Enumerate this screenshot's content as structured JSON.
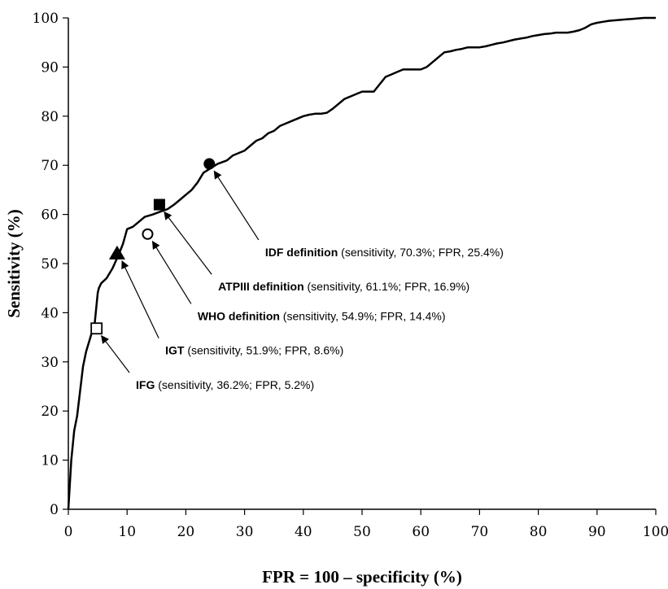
{
  "chart_data": {
    "type": "line",
    "title": "",
    "xlabel": "FPR = 100 – specificity (%)",
    "ylabel": "Sensitivity (%)",
    "xlim": [
      0,
      100
    ],
    "ylim": [
      0,
      100
    ],
    "x_ticks": [
      0,
      10,
      20,
      30,
      40,
      50,
      60,
      70,
      80,
      90,
      100
    ],
    "y_ticks": [
      0,
      10,
      20,
      30,
      40,
      50,
      60,
      70,
      80,
      90,
      100
    ],
    "grid": false,
    "line_color": "#000000",
    "series": [
      {
        "x": [
          0,
          0.5,
          1,
          1.5,
          2,
          2.5,
          3,
          3.5,
          4,
          4.5,
          5,
          5.2,
          5.6,
          6.5,
          7.5,
          8.6,
          9.3,
          10,
          11,
          12,
          13,
          14.4,
          15.5,
          16.9,
          18,
          19,
          20,
          21,
          22,
          23,
          25.4,
          27,
          28,
          29,
          30,
          31,
          32,
          33,
          34,
          35,
          36,
          37,
          38,
          39,
          40,
          41,
          42,
          43,
          44,
          45,
          46,
          47,
          48,
          49,
          50,
          51,
          52,
          53,
          54,
          55,
          56,
          57,
          58,
          59,
          60,
          61,
          62,
          63,
          64,
          65,
          66,
          67,
          68,
          69,
          70,
          71,
          72,
          73,
          74,
          75,
          76,
          77,
          78,
          79,
          80,
          81,
          82,
          83,
          84,
          85,
          86,
          87,
          88,
          89,
          90,
          91,
          92,
          93,
          94,
          95,
          96,
          97,
          98,
          99,
          100
        ],
        "y": [
          0,
          10,
          16,
          19,
          24,
          29,
          32,
          34,
          36,
          38,
          44,
          45,
          46,
          47,
          49,
          51.9,
          54,
          57,
          57.5,
          58.5,
          59.5,
          60,
          60.5,
          61.1,
          62,
          63,
          64,
          65,
          66.5,
          68.5,
          70.3,
          71,
          72,
          72.5,
          73,
          74,
          75,
          75.5,
          76.5,
          77,
          78,
          78.5,
          79,
          79.5,
          80,
          80.3,
          80.5,
          80.5,
          80.7,
          81.5,
          82.5,
          83.5,
          84,
          84.5,
          85,
          85,
          85,
          86.5,
          88,
          88.5,
          89,
          89.5,
          89.5,
          89.5,
          89.5,
          90,
          91,
          92,
          93,
          93.2,
          93.5,
          93.7,
          94,
          94,
          94,
          94.2,
          94.5,
          94.8,
          95,
          95.3,
          95.6,
          95.8,
          96,
          96.3,
          96.5,
          96.7,
          96.8,
          97,
          97,
          97,
          97.2,
          97.5,
          98,
          98.7,
          99,
          99.2,
          99.4,
          99.5,
          99.6,
          99.7,
          99.8,
          99.9,
          100,
          100,
          100
        ]
      }
    ],
    "annotations": [
      {
        "label_bold": "IDF definition",
        "label_rest": " (sensitivity, 70.3%; FPR, 25.4%)",
        "marker": "filled-circle",
        "point": [
          24,
          70.3
        ],
        "text_anchor": [
          33.5,
          51.5
        ]
      },
      {
        "label_bold": "ATPIII definition",
        "label_rest": " (sensitivity, 61.1%; FPR, 16.9%)",
        "marker": "filled-square",
        "point": [
          15.5,
          62
        ],
        "text_anchor": [
          25.5,
          44.5
        ]
      },
      {
        "label_bold": "WHO definition",
        "label_rest": " (sensitivity, 54.9%; FPR, 14.4%)",
        "marker": "open-circle",
        "point": [
          13.5,
          56
        ],
        "text_anchor": [
          22,
          38.5
        ]
      },
      {
        "label_bold": "IGT",
        "label_rest": " (sensitivity, 51.9%; FPR, 8.6%)",
        "marker": "filled-triangle",
        "point": [
          8.3,
          52
        ],
        "text_anchor": [
          16.5,
          31.5
        ]
      },
      {
        "label_bold": "IFG",
        "label_rest": " (sensitivity, 36.2%; FPR, 5.2%)",
        "marker": "open-square",
        "point": [
          4.8,
          36.8
        ],
        "text_anchor": [
          11.5,
          24.5
        ]
      }
    ]
  }
}
